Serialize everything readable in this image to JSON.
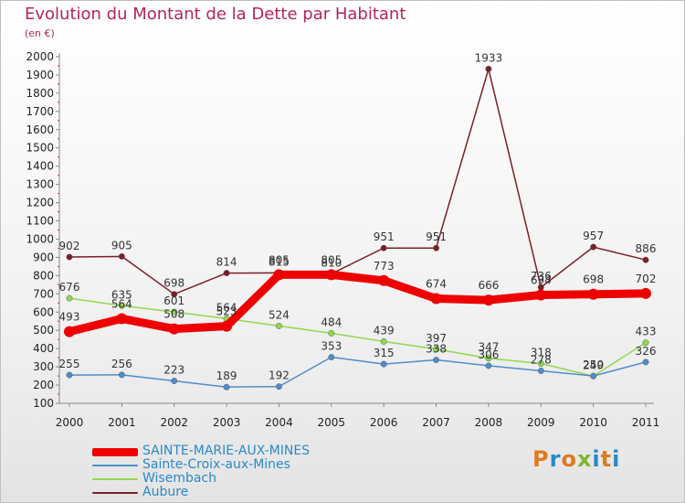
{
  "title": "Evolution du Montant de la Dette par Habitant",
  "unit": "(en €)",
  "logo": {
    "text": "Proxiti",
    "colors": [
      "#e07a1f",
      "#2a88c8",
      "#e07a1f",
      "#7ab82e",
      "#2a88c8",
      "#e07a1f",
      "#2a88c8"
    ]
  },
  "chart_data": {
    "type": "line",
    "title": "Evolution du Montant de la Dette par Habitant",
    "subtitle": "(en €)",
    "x": [
      "2000",
      "2001",
      "2002",
      "2003",
      "2004",
      "2005",
      "2006",
      "2007",
      "2008",
      "2009",
      "2010",
      "2011"
    ],
    "ylim": [
      100,
      2000
    ],
    "yticks": [
      100,
      200,
      300,
      400,
      500,
      600,
      700,
      800,
      900,
      1000,
      1100,
      1200,
      1300,
      1400,
      1500,
      1600,
      1700,
      1800,
      1900,
      2000
    ],
    "grid": false,
    "legend_position": "bottom-left",
    "series": [
      {
        "name": "SAINTE-MARIE-AUX-MINES",
        "color": "#ee0000",
        "values": [
          493,
          564,
          508,
          523,
          805,
          805,
          773,
          674,
          666,
          694,
          698,
          702
        ]
      },
      {
        "name": "Sainte-Croix-aux-Mines",
        "color": "#4d8ec9",
        "values": [
          255,
          256,
          223,
          189,
          192,
          353,
          315,
          338,
          306,
          278,
          250,
          326
        ]
      },
      {
        "name": "Wisembach",
        "color": "#90d84e",
        "values": [
          676,
          635,
          601,
          564,
          524,
          484,
          439,
          397,
          347,
          318,
          249,
          433
        ]
      },
      {
        "name": "Aubure",
        "color": "#7a1f26",
        "values": [
          902,
          905,
          698,
          814,
          815,
          810,
          951,
          951,
          1933,
          736,
          957,
          886
        ]
      }
    ]
  }
}
